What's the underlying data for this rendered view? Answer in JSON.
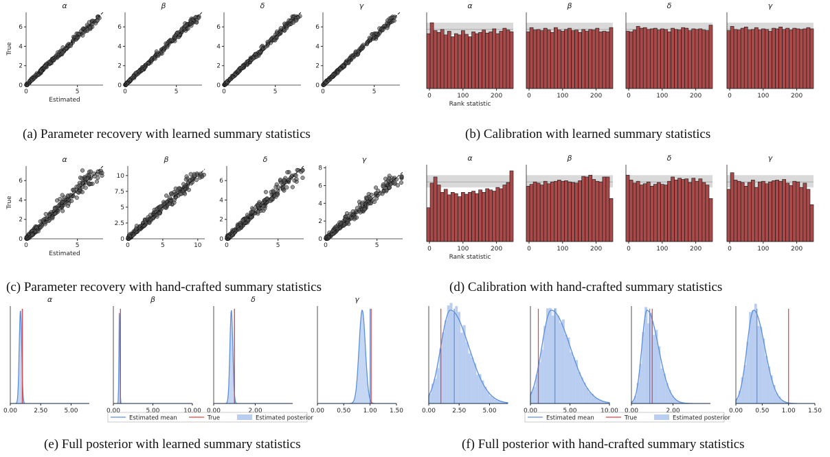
{
  "captions": {
    "a": "(a) Parameter recovery with learned summary statistics",
    "b": "(b) Calibration with learned summary statistics",
    "c": "(c) Parameter recovery with hand-crafted summary statistics",
    "d": "(d) Calibration with hand-crafted summary statistics",
    "e": "(e) Full posterior with learned summary statistics",
    "f": "(f) Full posterior with hand-crafted summary statistics"
  },
  "colors": {
    "bar": "#a94a4a",
    "band": "#d9d9d9",
    "kde": "#5b8fdc",
    "hist": "#b8cdf0",
    "true_line": "#e0433f",
    "points": "#555555"
  },
  "chart_data": [
    {
      "panel": "a",
      "type": "scatter",
      "xlabel": "Estimated",
      "ylabel": "True",
      "noise": 0.6,
      "subplots": [
        {
          "title": "α",
          "xlim": [
            0,
            7.5
          ],
          "ylim": [
            0,
            7.5
          ],
          "xticks": [
            0,
            5
          ],
          "yticks": [
            0,
            2,
            4,
            6
          ]
        },
        {
          "title": "β",
          "xlim": [
            0,
            7.5
          ],
          "ylim": [
            0,
            7.5
          ],
          "xticks": [
            0,
            5
          ],
          "yticks": [
            0,
            2,
            4,
            6
          ]
        },
        {
          "title": "δ",
          "xlim": [
            0,
            7.5
          ],
          "ylim": [
            0,
            7.5
          ],
          "xticks": [
            0,
            5
          ],
          "yticks": [
            0,
            2,
            4,
            6
          ]
        },
        {
          "title": "γ",
          "xlim": [
            0,
            7.5
          ],
          "ylim": [
            0,
            7.5
          ],
          "xticks": [
            0,
            5
          ],
          "yticks": [
            0,
            2,
            4,
            6
          ]
        }
      ]
    },
    {
      "panel": "b",
      "type": "bar",
      "xlabel": "Rank statistic",
      "subplots": [
        {
          "title": "α",
          "xticks": [
            0,
            100,
            200
          ],
          "values": [
            0.9,
            1.08,
            0.95,
            0.92,
            0.97,
            0.88,
            0.94,
            0.85,
            0.9,
            0.88,
            0.95,
            0.89,
            0.85,
            0.93,
            0.9,
            0.92,
            0.96,
            0.91,
            0.93,
            0.98,
            0.9,
            0.94,
            0.99,
            0.96,
            0.93
          ]
        },
        {
          "title": "β",
          "xticks": [
            0,
            100,
            200
          ],
          "values": [
            0.93,
            1.0,
            0.96,
            0.97,
            0.95,
            0.99,
            0.96,
            0.92,
            1.0,
            0.96,
            0.94,
            0.97,
            0.99,
            0.95,
            0.96,
            0.92,
            0.97,
            0.94,
            0.97,
            0.96,
            0.99,
            0.93,
            0.94,
            0.93,
            1.0
          ]
        },
        {
          "title": "δ",
          "xticks": [
            0,
            100,
            200
          ],
          "values": [
            0.94,
            0.93,
            0.96,
            1.02,
            0.99,
            1.0,
            0.97,
            0.98,
            0.99,
            0.96,
            0.98,
            0.97,
            0.93,
            0.99,
            0.97,
            0.96,
            1.0,
            0.99,
            0.95,
            0.98,
            0.97,
            0.98,
            0.96,
            0.95,
            1.04
          ]
        },
        {
          "title": "γ",
          "xticks": [
            0,
            100,
            200
          ],
          "values": [
            0.95,
            1.02,
            0.97,
            0.96,
            0.99,
            1.01,
            0.96,
            0.97,
            1.0,
            0.96,
            0.98,
            0.97,
            0.94,
            0.99,
            0.98,
            1.01,
            0.97,
            0.99,
            0.96,
            0.99,
            0.98,
            0.97,
            0.98,
            1.0,
            0.98
          ]
        }
      ]
    },
    {
      "panel": "c",
      "type": "scatter",
      "xlabel": "Estimated",
      "ylabel": "True",
      "noise": 1.5,
      "subplots": [
        {
          "title": "α",
          "xlim": [
            0,
            7.5
          ],
          "ylim": [
            0,
            7.5
          ],
          "xticks": [
            0,
            5
          ],
          "yticks": [
            0,
            2,
            4,
            6
          ]
        },
        {
          "title": "β",
          "xlim": [
            0,
            11
          ],
          "ylim": [
            0,
            11.5
          ],
          "xticks": [
            0,
            5,
            10
          ],
          "yticks": [
            0.0,
            2.5,
            5.0,
            7.5,
            10.0
          ]
        },
        {
          "title": "δ",
          "xlim": [
            0,
            7.5
          ],
          "ylim": [
            0,
            7.5
          ],
          "xticks": [
            0,
            5
          ],
          "yticks": [
            0,
            2,
            4,
            6
          ]
        },
        {
          "title": "γ",
          "xlim": [
            0,
            7.5
          ],
          "ylim": [
            0,
            8.2
          ],
          "xticks": [
            0,
            5
          ],
          "yticks": [
            0,
            2,
            4,
            6,
            8
          ]
        }
      ]
    },
    {
      "panel": "d",
      "type": "bar",
      "xlabel": "Rank statistic",
      "subplots": [
        {
          "title": "α",
          "xticks": [
            0,
            100,
            200
          ],
          "values": [
            0.55,
            0.95,
            1.05,
            0.92,
            0.8,
            0.85,
            0.76,
            0.8,
            0.78,
            0.73,
            0.8,
            0.77,
            0.8,
            0.82,
            0.78,
            0.84,
            0.8,
            0.86,
            0.84,
            0.82,
            0.88,
            0.86,
            0.92,
            0.96,
            1.15
          ]
        },
        {
          "title": "β",
          "xticks": [
            0,
            100,
            200
          ],
          "values": [
            0.9,
            0.93,
            0.97,
            0.95,
            0.92,
            0.98,
            0.94,
            0.97,
            0.98,
            1.0,
            0.98,
            0.99,
            0.97,
            0.96,
            0.95,
            0.99,
            1.06,
            1.05,
            1.08,
            1.01,
            0.98,
            0.97,
            1.05,
            1.05,
            0.7
          ]
        },
        {
          "title": "δ",
          "xticks": [
            0,
            100,
            200
          ],
          "values": [
            1.08,
            1.0,
            0.95,
            0.98,
            0.92,
            0.94,
            0.97,
            0.9,
            0.93,
            0.96,
            0.93,
            0.92,
            0.98,
            1.05,
            1.0,
            1.03,
            1.01,
            1.02,
            0.96,
            1.03,
            0.98,
            1.02,
            0.96,
            0.92,
            0.7
          ]
        },
        {
          "title": "γ",
          "xticks": [
            0,
            100,
            200
          ],
          "values": [
            0.85,
            1.12,
            1.0,
            0.98,
            0.96,
            0.9,
            0.96,
            1.0,
            0.88,
            0.97,
            0.98,
            0.94,
            0.97,
            0.99,
            1.0,
            0.98,
            1.01,
            0.95,
            0.91,
            0.98,
            0.97,
            0.88,
            0.95,
            0.85,
            0.6
          ]
        }
      ]
    },
    {
      "panel": "e",
      "type": "area",
      "legend": [
        "Estimated mean",
        "True",
        "Estimated posterior"
      ],
      "subplots": [
        {
          "title": "α",
          "xlim": [
            0,
            6.5
          ],
          "xticks": [
            0,
            2.5,
            5
          ],
          "xticklabels": [
            "0.00",
            "2.50",
            "5.00"
          ],
          "mean": 0.98,
          "true": 1.0,
          "sd": 0.1
        },
        {
          "title": "β",
          "xlim": [
            0,
            10
          ],
          "xticks": [
            0,
            5,
            10
          ],
          "xticklabels": [
            "0.00",
            "5.00",
            "10.00"
          ],
          "mean": 0.9,
          "true": 0.9,
          "sd": 0.06
        },
        {
          "title": "δ",
          "xlim": [
            0,
            3.8
          ],
          "xticks": [
            0,
            2
          ],
          "xticklabels": [
            "0.00",
            "2.00"
          ],
          "mean": 1.0,
          "true": 1.0,
          "sd": 0.07
        },
        {
          "title": "γ",
          "xlim": [
            0,
            1.5
          ],
          "xticks": [
            0,
            0.5,
            1,
            1.5
          ],
          "xticklabels": [
            "0.00",
            "0.50",
            "1.00",
            "1.50"
          ],
          "mean": 1.0,
          "true": 1.02,
          "sd": 0.06
        }
      ]
    },
    {
      "panel": "f",
      "type": "area",
      "legend": [
        "Estimated mean",
        "True",
        "Estimated posterior"
      ],
      "subplots": [
        {
          "title": "",
          "xlim": [
            0,
            6.5
          ],
          "xticks": [
            0,
            2.5,
            5
          ],
          "xticklabels": [
            "0.00",
            "2.50",
            "5.00"
          ],
          "mean": 2.1,
          "true": 1.0,
          "sd": 0.8,
          "skew": 1.9
        },
        {
          "title": "",
          "xlim": [
            0,
            10
          ],
          "xticks": [
            0,
            5,
            10
          ],
          "xticklabels": [
            "0.00",
            "5.00",
            "10.00"
          ],
          "mean": 3.1,
          "true": 1.0,
          "sd": 1.2,
          "skew": 2.0
        },
        {
          "title": "",
          "xlim": [
            0,
            3.8
          ],
          "xticks": [
            0,
            2
          ],
          "xticklabels": [
            "0.00",
            "2.00"
          ],
          "mean": 0.88,
          "true": 1.0,
          "sd": 0.25,
          "skew": 2.2
        },
        {
          "title": "",
          "xlim": [
            0,
            1.5
          ],
          "xticks": [
            0,
            0.5,
            1,
            1.5
          ],
          "xticklabels": [
            "0.00",
            "0.50",
            "1.00",
            "1.50"
          ],
          "mean": 0.4,
          "true": 1.0,
          "sd": 0.13,
          "skew": 1.6
        }
      ]
    }
  ]
}
